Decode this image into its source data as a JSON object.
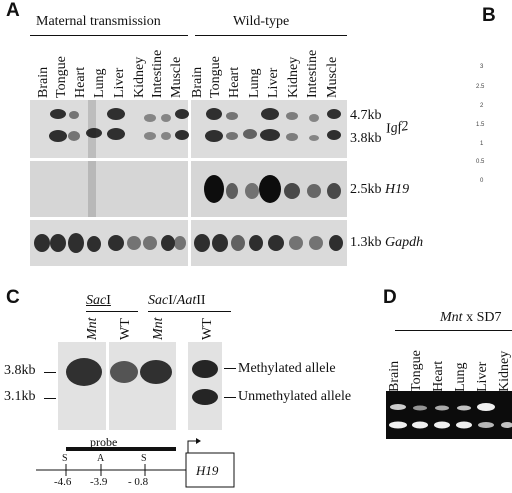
{
  "panels": {
    "a": "A",
    "b": "B",
    "c": "C",
    "d": "D"
  },
  "panel_a": {
    "group_maternal": "Maternal transmission",
    "group_wildtype": "Wild-type",
    "lanes_maternal": [
      "Brain",
      "Tongue",
      "Heart",
      "Lung",
      "Liver",
      "Kidney",
      "Intestine",
      "Muscle"
    ],
    "lanes_wildtype": [
      "Brain",
      "Tongue",
      "Heart",
      "Lung",
      "Liver",
      "Kidney",
      "Intestine",
      "Muscle"
    ],
    "igf2_size_upper": "4.7kb",
    "igf2_size_lower": "3.8kb",
    "igf2_gene": "Igf2",
    "h19_size": "2.5kb",
    "h19_gene": "H19",
    "gapdh_size": "1.3kb",
    "gapdh_gene": "Gapdh"
  },
  "panel_b": {
    "ticks": [
      "3",
      "2.5",
      "2",
      "1.5",
      "1",
      "0.5",
      "0"
    ]
  },
  "panel_c": {
    "enzyme_sac": "Sac",
    "enzyme_sac_suffix": "I",
    "enzyme_sacaat_a": "Sac",
    "enzyme_sacaat_b": "I/",
    "enzyme_sacaat_c": "Aat",
    "enzyme_sacaat_d": "II",
    "lane_mnt_1": "Mnt",
    "lane_wt_1": "WT",
    "lane_mnt_2": "Mnt",
    "lane_wt_2": "WT",
    "size_upper": "3.8kb",
    "size_lower": "3.1kb",
    "methylated": "Methylated allele",
    "unmethylated": "Unmethylated allele",
    "probe": "probe",
    "site_s1": "S",
    "site_a": "A",
    "site_s2": "S",
    "pos_1": "-4.6",
    "pos_2": "-3.9",
    "pos_3": "- 0.8",
    "gene_box": "H19"
  },
  "panel_d": {
    "cross_mnt": "Mnt",
    "cross_rest": " x SD7",
    "lanes": [
      "Brain",
      "Tongue",
      "Heart",
      "Lung",
      "Liver",
      "Kidney"
    ]
  },
  "colors": {
    "blot_bg": "#e6e6e6",
    "band": "#1a1a1a",
    "gel_bg": "#0c0c0c",
    "gel_band": "#f4f4f4"
  }
}
